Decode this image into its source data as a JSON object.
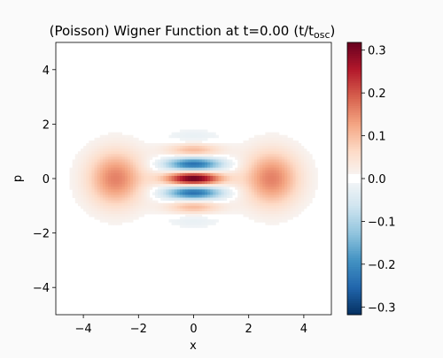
{
  "chart_data": {
    "type": "heatmap",
    "title": "(Poisson) Wigner Function at t=0.00",
    "title_unit": "(t/t",
    "title_unit_sub": "osc",
    "title_unit_close": ")",
    "xlabel": "x",
    "ylabel": "p",
    "xlim": [
      -5,
      5
    ],
    "ylim": [
      -5,
      5
    ],
    "x_ticks": [
      -4,
      -2,
      0,
      2,
      4
    ],
    "y_ticks": [
      -4,
      -2,
      0,
      2,
      4
    ],
    "x_tick_labels": [
      "−4",
      "−2",
      "0",
      "2",
      "4"
    ],
    "y_tick_labels": [
      "−4",
      "−2",
      "0",
      "2",
      "4"
    ],
    "colormap": "RdBu_r",
    "vmin": -0.318,
    "vmax": 0.318,
    "colorbar_ticks": [
      0.3,
      0.2,
      0.1,
      0.0,
      -0.1,
      -0.2,
      -0.3
    ],
    "colorbar_tick_labels": [
      "0.3",
      "0.2",
      "0.1",
      "0.0",
      "−0.1",
      "−0.2",
      "−0.3"
    ],
    "state": {
      "description_values": "cat state: two Gaussian peaks plus interference fringes along p",
      "peak_x": 2.83,
      "peak_value": 0.16,
      "center_value": 0.318,
      "fringe_frequency": 5.66,
      "near_zero_threshold": 0.01
    },
    "grid": false,
    "legend": "none"
  },
  "colors": {
    "background": "#fafafa",
    "axis": "#000000"
  }
}
